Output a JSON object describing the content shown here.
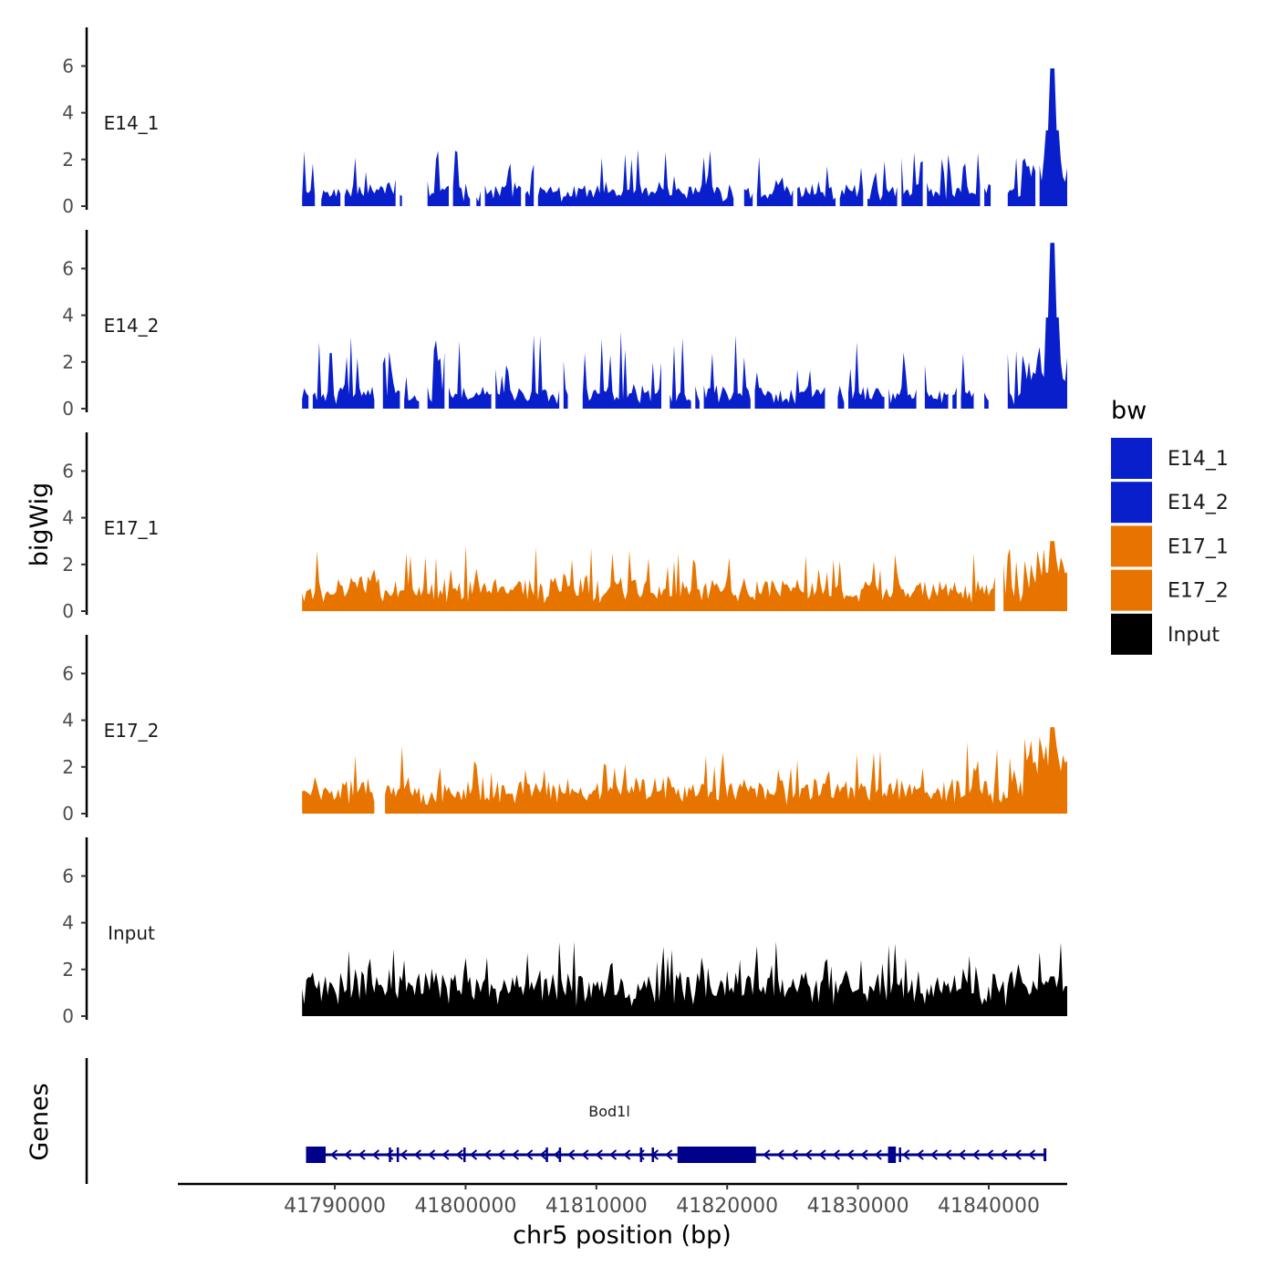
{
  "chart_data": {
    "type": "area",
    "chromosome": "chr5",
    "xlabel": "chr5 position (bp)",
    "ylabel": "bigWig",
    "genes_label": "Genes",
    "xlim": [
      41778000,
      41846000
    ],
    "ylim": [
      0,
      7.5
    ],
    "x_ticks": [
      41790000,
      41800000,
      41810000,
      41820000,
      41830000,
      41840000
    ],
    "x_tick_labels": [
      "41790000",
      "41800000",
      "41810000",
      "41820000",
      "41830000",
      "41840000"
    ],
    "y_ticks": [
      0,
      2,
      4,
      6
    ],
    "y_tick_labels": [
      "0",
      "2",
      "4",
      "6"
    ],
    "legend": {
      "title": "bw",
      "entries": [
        {
          "label": "E14_1",
          "color": "#0a1fcc"
        },
        {
          "label": "E14_2",
          "color": "#0a1fcc"
        },
        {
          "label": "E17_1",
          "color": "#e87400"
        },
        {
          "label": "E17_2",
          "color": "#e87400"
        },
        {
          "label": "Input",
          "color": "#000000"
        }
      ]
    },
    "series": [
      {
        "name": "E14_1",
        "color": "#0a1fcc",
        "base": 0.5,
        "noise": 0.45,
        "spike_prob": 0.13,
        "spike_height": 1.2,
        "peak_height": 5.9,
        "tail_level": 1.6,
        "seed": 11,
        "gaps": [
          [
            41788500,
            41788900
          ],
          [
            41795200,
            41797000
          ],
          [
            41800400,
            41800800
          ],
          [
            41820600,
            41821200
          ],
          [
            41840200,
            41841000
          ]
        ]
      },
      {
        "name": "E14_2",
        "color": "#0a1fcc",
        "base": 0.5,
        "noise": 0.45,
        "spike_prob": 0.15,
        "spike_height": 1.7,
        "peak_height": 7.1,
        "tail_level": 1.9,
        "seed": 23,
        "gaps": [
          [
            41808400,
            41808800
          ],
          [
            41827600,
            41828400
          ],
          [
            41840100,
            41841300
          ]
        ]
      },
      {
        "name": "E17_1",
        "color": "#e87400",
        "base": 0.8,
        "noise": 0.5,
        "spike_prob": 0.12,
        "spike_height": 1.2,
        "peak_height": 3.0,
        "tail_level": 1.6,
        "seed": 37,
        "gaps": [
          [
            41840500,
            41841000
          ]
        ]
      },
      {
        "name": "E17_2",
        "color": "#e87400",
        "base": 0.9,
        "noise": 0.5,
        "spike_prob": 0.12,
        "spike_height": 1.2,
        "peak_height": 3.7,
        "tail_level": 2.4,
        "seed": 51,
        "gaps": [
          [
            41793100,
            41793800
          ]
        ]
      },
      {
        "name": "Input",
        "color": "#000000",
        "base": 1.2,
        "noise": 0.55,
        "spike_prob": 0.14,
        "spike_height": 1.0,
        "peak_height": 1.7,
        "tail_level": 1.2,
        "seed": 73,
        "gaps": []
      }
    ],
    "region": {
      "start": 41787500,
      "end": 41846000,
      "peak_center": 41844900
    },
    "gene": {
      "name": "Bod1l",
      "strand": "-",
      "start": 41787800,
      "end": 41844300,
      "color": "#00008b",
      "exons": [
        [
          41787800,
          41789300
        ],
        [
          41816200,
          41822200
        ],
        [
          41832300,
          41832900
        ]
      ],
      "small_exons": [
        41794200,
        41794800,
        41799900,
        41806200,
        41807200,
        41813400,
        41814300,
        41833200
      ]
    }
  }
}
